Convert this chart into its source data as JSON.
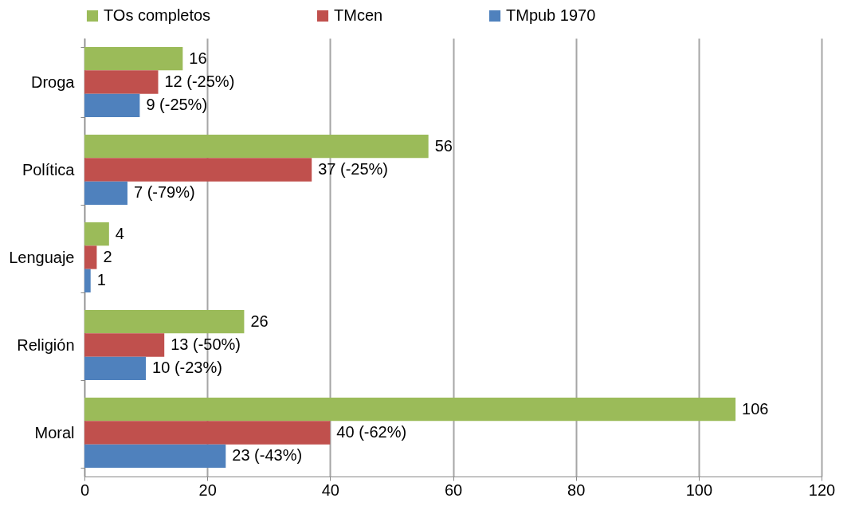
{
  "chart_data": {
    "type": "bar",
    "orientation": "horizontal",
    "categories": [
      "Droga",
      "Política",
      "Lenguaje",
      "Religión",
      "Moral"
    ],
    "series": [
      {
        "name": "TOs completos",
        "color": "#9bbb59",
        "values": [
          16,
          56,
          4,
          26,
          106
        ],
        "value_labels": [
          "16",
          "56",
          "4",
          "26",
          "106"
        ]
      },
      {
        "name": "TMcen",
        "color": "#c0504d",
        "values": [
          12,
          37,
          2,
          13,
          40
        ],
        "value_labels": [
          "12 (-25%)",
          "37 (-25%)",
          "2",
          "13 (-50%)",
          "40 (-62%)"
        ]
      },
      {
        "name": "TMpub 1970",
        "color": "#4f81bd",
        "values": [
          9,
          7,
          1,
          10,
          23
        ],
        "value_labels": [
          "9 (-25%)",
          "7 (-79%)",
          "1",
          "10 (-23%)",
          "23 (-43%)"
        ]
      }
    ],
    "xlim": [
      0,
      120
    ],
    "xticks": [
      0,
      20,
      40,
      60,
      80,
      100,
      120
    ],
    "grid": "x",
    "legend": "top"
  }
}
